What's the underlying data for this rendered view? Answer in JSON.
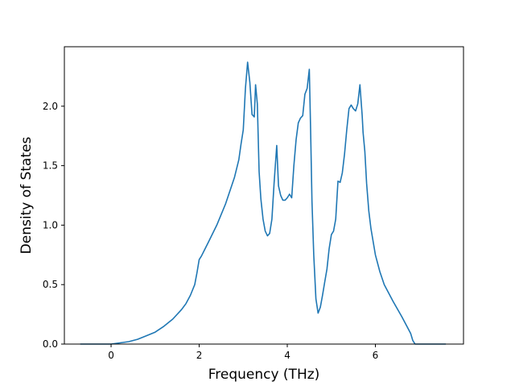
{
  "chart_data": {
    "type": "line",
    "title": "",
    "xlabel": "Frequency (THz)",
    "ylabel": "Density of States",
    "xlim": [
      -1.06,
      8.0
    ],
    "ylim": [
      0.0,
      2.5
    ],
    "xticks": [
      0,
      2,
      4,
      6
    ],
    "yticks": [
      0.0,
      0.5,
      1.0,
      1.5,
      2.0
    ],
    "xtick_labels": [
      "0",
      "2",
      "4",
      "6"
    ],
    "ytick_labels": [
      "0.0",
      "0.5",
      "1.0",
      "1.5",
      "2.0"
    ],
    "grid": false,
    "legend": "none",
    "color": "#1f77b4",
    "series": [
      {
        "x": [
          -0.7,
          -0.4,
          -0.2,
          0.0,
          0.2,
          0.4,
          0.6,
          0.8,
          1.0,
          1.2,
          1.4,
          1.6,
          1.7,
          1.8,
          1.9,
          1.95,
          2.0,
          2.05,
          2.2,
          2.4,
          2.6,
          2.8,
          2.9,
          2.95,
          3.0,
          3.05,
          3.1,
          3.15,
          3.2,
          3.25,
          3.28,
          3.32,
          3.36,
          3.4,
          3.45,
          3.5,
          3.55,
          3.6,
          3.65,
          3.7,
          3.76,
          3.8,
          3.85,
          3.9,
          3.95,
          4.0,
          4.05,
          4.1,
          4.15,
          4.2,
          4.25,
          4.3,
          4.35,
          4.4,
          4.45,
          4.5,
          4.53,
          4.56,
          4.6,
          4.65,
          4.7,
          4.75,
          4.8,
          4.85,
          4.9,
          4.95,
          5.0,
          5.05,
          5.1,
          5.15,
          5.2,
          5.25,
          5.3,
          5.35,
          5.4,
          5.45,
          5.5,
          5.55,
          5.6,
          5.65,
          5.7,
          5.72,
          5.76,
          5.8,
          5.85,
          5.9,
          6.0,
          6.1,
          6.2,
          6.4,
          6.6,
          6.8,
          6.85,
          6.9,
          7.0,
          7.3,
          7.6
        ],
        "y": [
          0.0,
          0.0,
          0.0,
          0.0,
          0.01,
          0.02,
          0.04,
          0.07,
          0.1,
          0.15,
          0.21,
          0.29,
          0.34,
          0.41,
          0.5,
          0.6,
          0.71,
          0.74,
          0.85,
          1.0,
          1.18,
          1.4,
          1.55,
          1.68,
          1.8,
          2.15,
          2.37,
          2.2,
          1.93,
          1.91,
          2.18,
          2.02,
          1.45,
          1.22,
          1.05,
          0.95,
          0.91,
          0.93,
          1.05,
          1.35,
          1.67,
          1.33,
          1.25,
          1.21,
          1.21,
          1.23,
          1.26,
          1.23,
          1.5,
          1.72,
          1.86,
          1.9,
          1.92,
          2.1,
          2.15,
          2.31,
          1.8,
          1.2,
          0.75,
          0.38,
          0.26,
          0.31,
          0.41,
          0.52,
          0.63,
          0.8,
          0.92,
          0.95,
          1.05,
          1.37,
          1.36,
          1.44,
          1.6,
          1.8,
          1.98,
          2.01,
          1.98,
          1.96,
          2.02,
          2.18,
          1.92,
          1.78,
          1.62,
          1.35,
          1.12,
          0.97,
          0.75,
          0.61,
          0.5,
          0.36,
          0.23,
          0.09,
          0.03,
          0.0,
          0.0,
          0.0,
          0.0
        ]
      }
    ]
  }
}
